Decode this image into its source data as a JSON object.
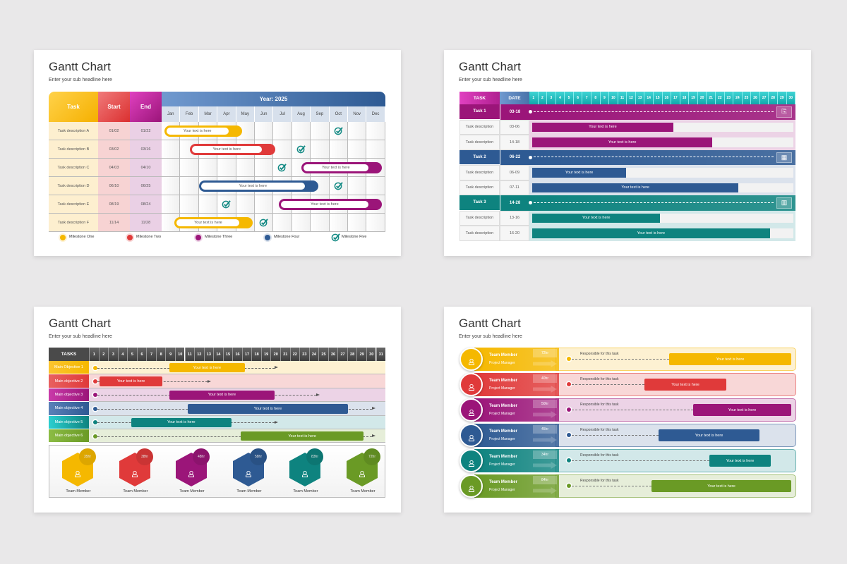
{
  "colors": {
    "yellow": "#f5b800",
    "red": "#e03a3a",
    "magenta": "#9b1579",
    "blue": "#2e5a93",
    "teal": "#0e837f",
    "green": "#6a9a25"
  },
  "slide1": {
    "title": "Gantt Chart",
    "subtitle": "Enter your sub headline here",
    "headers": {
      "task": "Task",
      "start": "Start",
      "end": "End",
      "year": "Year: 2025"
    },
    "months": [
      "Jan",
      "Feb",
      "Mar",
      "Apr",
      "May",
      "Jun",
      "Jul",
      "Aug",
      "Sep",
      "Oct",
      "Nov",
      "Dec"
    ],
    "rows": [
      {
        "task": "Task description A",
        "start": "01/02",
        "end": "01/22",
        "bar_label": "Your text is here",
        "bar_months": [
          0.15,
          4.3
        ],
        "color": "yellow",
        "milestone_month": 9
      },
      {
        "task": "Task description B",
        "start": "03/02",
        "end": "03/16",
        "bar_label": "Your text is here",
        "bar_months": [
          1.5,
          6.1
        ],
        "color": "red",
        "milestone_month": 7
      },
      {
        "task": "Task description C",
        "start": "04/03",
        "end": "04/10",
        "bar_label": "Your text is here",
        "bar_months": [
          7.5,
          11.8
        ],
        "color": "magenta",
        "milestone_month": 6
      },
      {
        "task": "Task description D",
        "start": "06/10",
        "end": "06/25",
        "bar_label": "Your text is here",
        "bar_months": [
          2.0,
          8.4
        ],
        "color": "blue",
        "milestone_month": 9
      },
      {
        "task": "Task description E",
        "start": "08/19",
        "end": "08/24",
        "bar_label": "Your text is here",
        "bar_months": [
          6.3,
          11.8
        ],
        "color": "magenta",
        "milestone_month": 3
      },
      {
        "task": "Task description F",
        "start": "11/14",
        "end": "11/28",
        "bar_label": "Your text is here",
        "bar_months": [
          0.7,
          4.9
        ],
        "color": "yellow",
        "milestone_month": 5
      }
    ],
    "legend": [
      {
        "label": "Milestone One",
        "color": "yellow"
      },
      {
        "label": "Milestone Two",
        "color": "red"
      },
      {
        "label": "Milestone Three",
        "color": "magenta"
      },
      {
        "label": "Milestone Four",
        "color": "blue"
      },
      {
        "label": "Milestone Five",
        "icon": "check-icon"
      }
    ]
  },
  "slide2": {
    "title": "Gantt Chart",
    "subtitle": "Enter your sub headline here",
    "headers": {
      "task": "TASK",
      "date": "DATE"
    },
    "days": [
      "1",
      "2",
      "3",
      "4",
      "5",
      "6",
      "7",
      "8",
      "9",
      "10",
      "11",
      "12",
      "13",
      "14",
      "15",
      "16",
      "17",
      "18",
      "19",
      "20",
      "21",
      "22",
      "23",
      "24",
      "25",
      "26",
      "27",
      "28",
      "29",
      "30"
    ],
    "groups": [
      {
        "name": "Task 1",
        "date": "03-18",
        "color": "magenta",
        "icon": "document-search-icon",
        "items": [
          {
            "task": "Task description",
            "date": "03-06",
            "label": "Your text is here",
            "percent": 54
          },
          {
            "task": "Task description",
            "date": "14-18",
            "label": "Your text is here",
            "percent": 69
          }
        ]
      },
      {
        "name": "Task 2",
        "date": "06-22",
        "color": "blue",
        "icon": "calendar-icon",
        "items": [
          {
            "task": "Task description",
            "date": "06-09",
            "label": "Your text is here",
            "percent": 36
          },
          {
            "task": "Task description",
            "date": "07-11",
            "label": "Your text is here",
            "percent": 79
          }
        ]
      },
      {
        "name": "Task 3",
        "date": "14-28",
        "color": "teal",
        "icon": "bar-chart-icon",
        "items": [
          {
            "task": "Task description",
            "date": "13-16",
            "label": "Your text is here",
            "percent": 49
          },
          {
            "task": "Task description",
            "date": "16-20",
            "label": "Your text is here",
            "percent": 91
          }
        ]
      }
    ]
  },
  "slide3": {
    "title": "Gantt Chart",
    "subtitle": "Enter your sub headline here",
    "header": "TASKS",
    "days": [
      "1",
      "2",
      "3",
      "4",
      "5",
      "6",
      "7",
      "8",
      "9",
      "10",
      "11",
      "12",
      "13",
      "14",
      "15",
      "16",
      "17",
      "18",
      "19",
      "20",
      "21",
      "22",
      "23",
      "24",
      "25",
      "26",
      "27",
      "28",
      "29",
      "30",
      "31"
    ],
    "rows": [
      {
        "label": "Main Objective 1",
        "bar_label": "Your text is here",
        "bar_days": [
          9.4,
          17.3
        ],
        "arrow_day": 20.4,
        "color": "yellow"
      },
      {
        "label": "Main objective 2",
        "bar_label": "Your text is here",
        "bar_days": [
          2.1,
          8.7
        ],
        "arrow_day": 13.4,
        "color": "red"
      },
      {
        "label": "Main objective 3",
        "bar_label": "Your text is here",
        "bar_days": [
          9.4,
          20.4
        ],
        "arrow_day": 24.8,
        "color": "magenta"
      },
      {
        "label": "Main objective 4",
        "bar_label": "Your text is here",
        "bar_days": [
          11.3,
          28.1
        ],
        "arrow_day": 30.6,
        "color": "blue"
      },
      {
        "label": "Main objective 5",
        "bar_label": "Your text is here",
        "bar_days": [
          5.4,
          15.9
        ],
        "arrow_day": 20.4,
        "color": "teal"
      },
      {
        "label": "Main objective 6",
        "bar_label": "Your text is here",
        "bar_days": [
          16.9,
          29.7
        ],
        "arrow_day": 30.6,
        "color": "green"
      }
    ],
    "team": [
      {
        "hours": "35hr",
        "label": "Team Member",
        "color": "yellow"
      },
      {
        "hours": "38hr",
        "label": "Team Member",
        "color": "red"
      },
      {
        "hours": "48hr",
        "label": "Team Member",
        "color": "magenta"
      },
      {
        "hours": "58hr",
        "label": "Team Member",
        "color": "blue"
      },
      {
        "hours": "83hr",
        "label": "Team Member",
        "color": "teal"
      },
      {
        "hours": "72hr",
        "label": "Team Member",
        "color": "green"
      }
    ]
  },
  "slide4": {
    "title": "Gantt Chart",
    "subtitle": "Enter your sub headline here",
    "rows": [
      {
        "name": "Team Member",
        "role": "Project Manager",
        "hours": "72hr",
        "note": "Responsible for this task",
        "bar_label": "Your text is here",
        "color": "yellow"
      },
      {
        "name": "Team Member",
        "role": "Project Manager",
        "hours": "40hr",
        "note": "Responsible for this task",
        "bar_label": "Your text is here",
        "color": "red"
      },
      {
        "name": "Team Member",
        "role": "Project Manager",
        "hours": "50hr",
        "note": "Responsible for this task",
        "bar_label": "Your text is here",
        "color": "magenta"
      },
      {
        "name": "Team Member",
        "role": "Project Manager",
        "hours": "45hr",
        "note": "Responsible for this task",
        "bar_label": "Your text is here",
        "color": "blue"
      },
      {
        "name": "Team Member",
        "role": "Project Manager",
        "hours": "34hr",
        "note": "Responsible for this task",
        "bar_label": "Your text is here",
        "color": "teal"
      },
      {
        "name": "Team Member",
        "role": "Project Manager",
        "hours": "84hr",
        "note": "Responsible for this task",
        "bar_label": "Your text is here",
        "color": "green"
      }
    ]
  }
}
